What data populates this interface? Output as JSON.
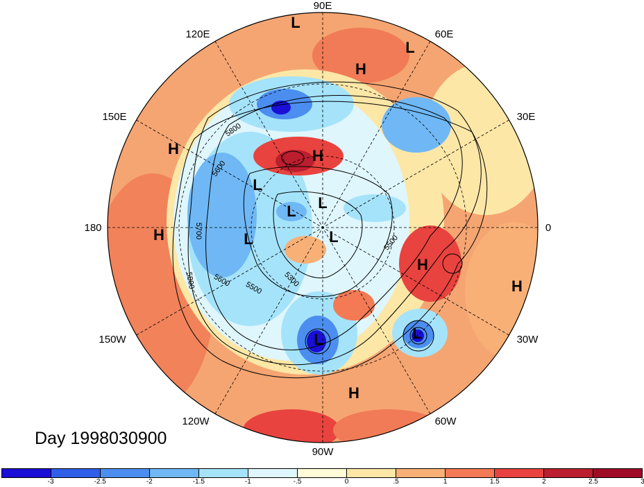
{
  "title": "Day 1998030900",
  "longitude_labels": [
    "90E",
    "60E",
    "30E",
    "0",
    "30W",
    "60W",
    "90W",
    "120W",
    "150W",
    "180",
    "150E",
    "120E"
  ],
  "pressure_systems": [
    {
      "type": "L"
    },
    {
      "type": "H"
    },
    {
      "type": "L"
    },
    {
      "type": "H"
    },
    {
      "type": "H"
    },
    {
      "type": "L"
    },
    {
      "type": "L"
    },
    {
      "type": "L"
    },
    {
      "type": "H"
    },
    {
      "type": "L"
    },
    {
      "type": "L"
    },
    {
      "type": "H"
    },
    {
      "type": "H"
    },
    {
      "type": "L"
    },
    {
      "type": "L"
    },
    {
      "type": "H"
    }
  ],
  "contour_labels": [
    "5800",
    "5600",
    "5700",
    "5800",
    "5600",
    "5500",
    "5300",
    "5500"
  ],
  "colorbar": {
    "colors": [
      "#1a0fd6",
      "#2f5fe8",
      "#4c8ef0",
      "#6fb8f5",
      "#a5e3fa",
      "#dff6fc",
      "#fffbd8",
      "#fce7a7",
      "#f8b076",
      "#f37a55",
      "#e8433f",
      "#bb1e2e",
      "#a00c25"
    ],
    "labels": [
      "-3",
      "-2.5",
      "-2",
      "-1.5",
      "-1",
      "-.5",
      "0",
      ".5",
      "1",
      "1.5",
      "2",
      "2.5",
      "3"
    ]
  }
}
